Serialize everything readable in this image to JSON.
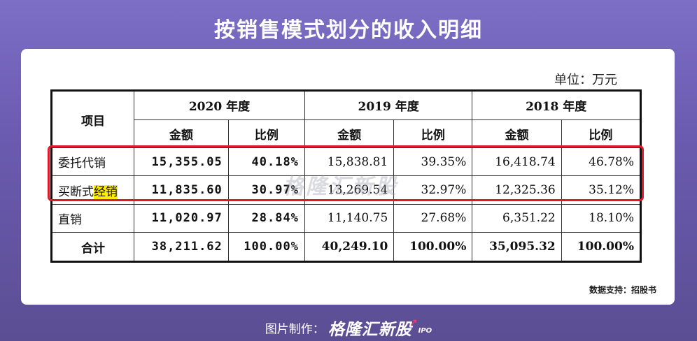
{
  "title": "按销售模式划分的收入明细",
  "unit": "单位：万元",
  "table": {
    "col_item": "项目",
    "years": [
      "2020 年度",
      "2019 年度",
      "2018 年度"
    ],
    "sub_amount": "金额",
    "sub_ratio": "比例",
    "rows": [
      {
        "label": "委托代销",
        "label_plain": "委托代销",
        "label_hl": "",
        "v": [
          "15,355.05",
          "40.18%",
          "15,838.81",
          "39.35%",
          "16,418.74",
          "46.78%"
        ]
      },
      {
        "label": "买断式经销",
        "label_plain": "买断式",
        "label_hl": "经销",
        "v": [
          "11,835.60",
          "30.97%",
          "13,269.54",
          "32.97%",
          "12,325.36",
          "35.12%"
        ]
      },
      {
        "label": "直销",
        "label_plain": "直销",
        "label_hl": "",
        "v": [
          "11,020.97",
          "28.84%",
          "11,140.75",
          "27.68%",
          "6,351.22",
          "18.10%"
        ]
      },
      {
        "label": "合计",
        "label_plain": "合计",
        "label_hl": "",
        "v": [
          "38,211.62",
          "100.00%",
          "40,249.10",
          "100.00%",
          "35,095.32",
          "100.00%"
        ]
      }
    ]
  },
  "watermark": "格隆汇新股",
  "source": "数据支持：招股书",
  "footer": {
    "lead": "图片制作：",
    "brand": "格隆汇新股",
    "suffix": "IPO"
  },
  "colors": {
    "highlight_box": "#e0192a",
    "marker": "#ffee00",
    "background": "#6a5bb0"
  }
}
